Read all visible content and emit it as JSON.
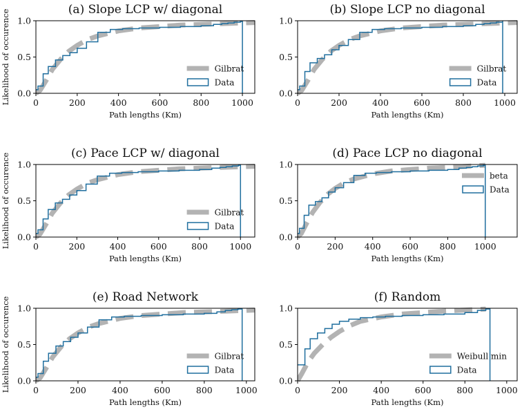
{
  "chart_data": [
    {
      "type": "line",
      "title": "(a) Slope LCP w/ diagonal",
      "xlabel": "Path lengths (Km)",
      "ylabel": "Likelihood of occurence",
      "xlim": [
        0,
        1060
      ],
      "ylim": [
        0,
        1.0
      ],
      "xticks": [
        0,
        200,
        400,
        600,
        800,
        1000
      ],
      "yticks": [
        0.0,
        0.5,
        1.0
      ],
      "xtick_labels": [
        "0",
        "200",
        "400",
        "600",
        "800",
        "1000"
      ],
      "ytick_labels": [
        "0.0",
        "0.5",
        "1.0"
      ],
      "legend": {
        "fit_label": "Gilbrat",
        "data_label": "Data",
        "position": "lower-right"
      },
      "fit": {
        "name": "Gilbrat",
        "x": [
          0,
          20,
          50,
          80,
          120,
          160,
          200,
          250,
          300,
          400,
          500,
          600,
          700,
          800,
          900,
          1000,
          1060
        ],
        "y": [
          0,
          0.04,
          0.18,
          0.33,
          0.47,
          0.58,
          0.66,
          0.74,
          0.79,
          0.86,
          0.9,
          0.92,
          0.94,
          0.95,
          0.96,
          0.97,
          0.975
        ]
      },
      "data": {
        "name": "Data",
        "x": [
          0,
          10,
          35,
          60,
          95,
          130,
          165,
          200,
          245,
          300,
          360,
          420,
          500,
          600,
          700,
          800,
          860,
          900,
          930,
          960,
          990,
          1000
        ],
        "y": [
          0.05,
          0.1,
          0.27,
          0.37,
          0.46,
          0.52,
          0.56,
          0.62,
          0.71,
          0.84,
          0.88,
          0.89,
          0.9,
          0.91,
          0.92,
          0.93,
          0.95,
          0.96,
          0.97,
          0.98,
          0.99,
          1.0
        ],
        "drop_x": 1000
      }
    },
    {
      "type": "line",
      "title": "(b) Slope LCP no diagonal",
      "xlabel": "Path lengths (Km)",
      "ylabel": "",
      "xlim": [
        0,
        1060
      ],
      "ylim": [
        0,
        1.0
      ],
      "xticks": [
        0,
        200,
        400,
        600,
        800,
        1000
      ],
      "yticks": [
        0.0,
        0.5,
        1.0
      ],
      "xtick_labels": [
        "0",
        "200",
        "400",
        "600",
        "800",
        "1000"
      ],
      "ytick_labels": [
        "0.0",
        "0.5",
        "1.0"
      ],
      "legend": {
        "fit_label": "Gilbrat",
        "data_label": "Data",
        "position": "lower-right"
      },
      "fit": {
        "name": "Gilbrat",
        "x": [
          0,
          20,
          50,
          80,
          120,
          160,
          200,
          250,
          300,
          400,
          500,
          600,
          700,
          800,
          900,
          1000,
          1060
        ],
        "y": [
          0,
          0.04,
          0.18,
          0.33,
          0.47,
          0.58,
          0.66,
          0.74,
          0.79,
          0.86,
          0.9,
          0.92,
          0.94,
          0.95,
          0.96,
          0.97,
          0.975
        ]
      },
      "data": {
        "name": "Data",
        "x": [
          0,
          10,
          35,
          60,
          95,
          130,
          165,
          200,
          245,
          300,
          360,
          420,
          500,
          600,
          700,
          800,
          860,
          900,
          930,
          960,
          990
        ],
        "y": [
          0.05,
          0.1,
          0.3,
          0.42,
          0.48,
          0.53,
          0.6,
          0.66,
          0.74,
          0.84,
          0.88,
          0.89,
          0.9,
          0.91,
          0.92,
          0.93,
          0.95,
          0.96,
          0.97,
          0.98,
          1.0
        ],
        "drop_x": 990
      }
    },
    {
      "type": "line",
      "title": "(c) Pace LCP w/ diagonal",
      "xlabel": "Path lengths (Km)",
      "ylabel": "Likelihood of occurence",
      "xlim": [
        0,
        1070
      ],
      "ylim": [
        0,
        1.0
      ],
      "xticks": [
        0,
        200,
        400,
        600,
        800,
        1000
      ],
      "yticks": [
        0.0,
        0.5,
        1.0
      ],
      "xtick_labels": [
        "0",
        "200",
        "400",
        "600",
        "800",
        "1000"
      ],
      "ytick_labels": [
        "0.0",
        "0.5",
        "1.0"
      ],
      "legend": {
        "fit_label": "Gilbrat",
        "data_label": "Data",
        "position": "lower-right"
      },
      "fit": {
        "name": "Gilbrat",
        "x": [
          0,
          20,
          50,
          80,
          120,
          160,
          200,
          250,
          300,
          400,
          500,
          600,
          700,
          800,
          900,
          1000,
          1070
        ],
        "y": [
          0,
          0.04,
          0.18,
          0.33,
          0.47,
          0.58,
          0.66,
          0.74,
          0.79,
          0.86,
          0.9,
          0.92,
          0.94,
          0.95,
          0.96,
          0.97,
          0.975
        ]
      },
      "data": {
        "name": "Data",
        "x": [
          0,
          10,
          35,
          60,
          95,
          130,
          165,
          200,
          245,
          300,
          360,
          420,
          500,
          600,
          700,
          800,
          860,
          900,
          930,
          960,
          990,
          1000
        ],
        "y": [
          0.05,
          0.1,
          0.25,
          0.38,
          0.47,
          0.52,
          0.58,
          0.64,
          0.73,
          0.84,
          0.88,
          0.89,
          0.9,
          0.91,
          0.92,
          0.93,
          0.95,
          0.96,
          0.97,
          0.98,
          0.99,
          1.0
        ],
        "drop_x": 1000
      }
    },
    {
      "type": "line",
      "title": "(d) Pace LCP no diagonal",
      "xlabel": "Path lengths (Km)",
      "ylabel": "",
      "xlim": [
        0,
        1170
      ],
      "ylim": [
        0,
        1.0
      ],
      "xticks": [
        0,
        200,
        400,
        600,
        800,
        1000
      ],
      "yticks": [
        0.0,
        0.5,
        1.0
      ],
      "xtick_labels": [
        "0",
        "200",
        "400",
        "600",
        "800",
        "1000"
      ],
      "ytick_labels": [
        "0.0",
        "0.5",
        "1.0"
      ],
      "legend": {
        "fit_label": "beta",
        "data_label": "Data",
        "position": "upper-right"
      },
      "fit": {
        "name": "beta",
        "x": [
          0,
          20,
          50,
          80,
          120,
          160,
          200,
          250,
          300,
          400,
          500,
          600,
          700,
          800,
          900,
          1000
        ],
        "y": [
          0,
          0.05,
          0.2,
          0.34,
          0.48,
          0.59,
          0.67,
          0.75,
          0.8,
          0.87,
          0.91,
          0.93,
          0.95,
          0.96,
          0.975,
          0.99
        ]
      },
      "data": {
        "name": "Data",
        "x": [
          0,
          10,
          35,
          60,
          95,
          130,
          165,
          200,
          245,
          300,
          360,
          420,
          500,
          600,
          700,
          800,
          860,
          900,
          930,
          960,
          990,
          1000
        ],
        "y": [
          0.05,
          0.12,
          0.3,
          0.44,
          0.49,
          0.54,
          0.62,
          0.68,
          0.75,
          0.85,
          0.88,
          0.89,
          0.9,
          0.91,
          0.92,
          0.93,
          0.95,
          0.96,
          0.97,
          0.98,
          0.99,
          1.0
        ],
        "drop_x": 1000
      }
    },
    {
      "type": "line",
      "title": "(e) Road Network",
      "xlabel": "Path lengths (Km)",
      "ylabel": "Likelihood of occurence",
      "xlim": [
        0,
        1040
      ],
      "ylim": [
        0,
        1.0
      ],
      "xticks": [
        0,
        200,
        400,
        600,
        800,
        1000
      ],
      "yticks": [
        0.0,
        0.5,
        1.0
      ],
      "xtick_labels": [
        "0",
        "200",
        "400",
        "600",
        "800",
        "1000"
      ],
      "ytick_labels": [
        "0.0",
        "0.5",
        "1.0"
      ],
      "legend": {
        "fit_label": "Gilbrat",
        "data_label": "Data",
        "position": "lower-right"
      },
      "fit": {
        "name": "Gilbrat",
        "x": [
          0,
          20,
          50,
          80,
          120,
          160,
          200,
          250,
          300,
          400,
          500,
          600,
          700,
          800,
          900,
          1000,
          1040
        ],
        "y": [
          0,
          0.04,
          0.18,
          0.33,
          0.47,
          0.58,
          0.66,
          0.74,
          0.79,
          0.86,
          0.9,
          0.92,
          0.94,
          0.95,
          0.96,
          0.97,
          0.975
        ]
      },
      "data": {
        "name": "Data",
        "x": [
          0,
          10,
          35,
          60,
          95,
          130,
          165,
          200,
          245,
          300,
          360,
          420,
          500,
          600,
          700,
          800,
          860,
          900,
          930,
          960,
          980
        ],
        "y": [
          0.05,
          0.1,
          0.27,
          0.38,
          0.48,
          0.54,
          0.6,
          0.66,
          0.74,
          0.84,
          0.88,
          0.89,
          0.9,
          0.91,
          0.92,
          0.93,
          0.95,
          0.97,
          0.98,
          0.99,
          1.0
        ],
        "drop_x": 980
      }
    },
    {
      "type": "line",
      "title": "(f) Random",
      "xlabel": "Path lengths (Km)",
      "ylabel": "",
      "xlim": [
        0,
        1050
      ],
      "ylim": [
        0,
        1.0
      ],
      "xticks": [
        0,
        200,
        400,
        600,
        800,
        1000
      ],
      "yticks": [
        0.0,
        0.5,
        1.0
      ],
      "xtick_labels": [
        "0",
        "200",
        "400",
        "600",
        "800",
        "1000"
      ],
      "ytick_labels": [
        "0.0",
        "0.5",
        "1.0"
      ],
      "legend": {
        "fit_label": "Weibull min",
        "data_label": "Data",
        "position": "lower-right"
      },
      "fit": {
        "name": "Weibull min",
        "x": [
          0,
          20,
          50,
          80,
          120,
          160,
          200,
          250,
          300,
          400,
          500,
          600,
          700,
          800,
          900
        ],
        "y": [
          0,
          0.1,
          0.26,
          0.38,
          0.5,
          0.6,
          0.68,
          0.76,
          0.82,
          0.88,
          0.92,
          0.94,
          0.96,
          0.975,
          0.99
        ]
      },
      "data": {
        "name": "Data",
        "x": [
          0,
          10,
          35,
          60,
          95,
          130,
          165,
          200,
          245,
          300,
          360,
          420,
          500,
          600,
          700,
          800,
          860,
          900,
          920
        ],
        "y": [
          0.22,
          0.22,
          0.44,
          0.58,
          0.66,
          0.72,
          0.78,
          0.82,
          0.85,
          0.87,
          0.88,
          0.89,
          0.9,
          0.91,
          0.92,
          0.94,
          0.97,
          0.99,
          1.0
        ],
        "drop_x": 920
      }
    }
  ]
}
